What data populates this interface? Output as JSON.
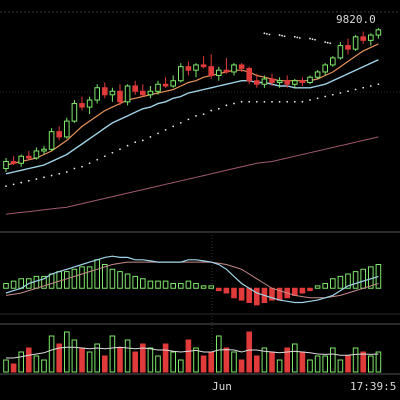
{
  "chart_data": {
    "type": "candlestick",
    "x_axis": {
      "labels": [
        "Jun"
      ],
      "time_readout": "17:39:5"
    },
    "price_panel": {
      "last_price_label": "9820.0",
      "candles": [
        [
          1.0,
          1.6,
          0.8,
          1.4
        ],
        [
          1.4,
          1.7,
          1.2,
          1.3
        ],
        [
          1.3,
          1.8,
          1.1,
          1.7
        ],
        [
          1.7,
          2.0,
          1.5,
          1.6
        ],
        [
          1.6,
          2.2,
          1.5,
          2.0
        ],
        [
          2.0,
          2.3,
          1.8,
          2.1
        ],
        [
          2.1,
          3.3,
          2.0,
          3.1
        ],
        [
          3.1,
          3.4,
          2.6,
          2.8
        ],
        [
          2.8,
          3.9,
          2.7,
          3.7
        ],
        [
          3.7,
          4.9,
          3.6,
          4.7
        ],
        [
          4.7,
          5.1,
          4.3,
          4.5
        ],
        [
          4.5,
          5.1,
          4.1,
          4.9
        ],
        [
          4.9,
          5.8,
          4.7,
          5.6
        ],
        [
          5.6,
          5.9,
          5.0,
          5.2
        ],
        [
          5.2,
          5.6,
          4.8,
          5.4
        ],
        [
          5.4,
          5.8,
          4.6,
          4.8
        ],
        [
          4.8,
          5.8,
          4.6,
          5.7
        ],
        [
          5.7,
          6.0,
          5.2,
          5.4
        ],
        [
          5.4,
          5.8,
          5.1,
          5.2
        ],
        [
          5.2,
          5.7,
          5.0,
          5.4
        ],
        [
          5.4,
          6.0,
          5.2,
          5.8
        ],
        [
          5.8,
          6.2,
          5.6,
          5.7
        ],
        [
          5.7,
          6.3,
          5.6,
          6.0
        ],
        [
          6.0,
          7.0,
          5.9,
          6.8
        ],
        [
          6.8,
          7.1,
          6.3,
          6.6
        ],
        [
          6.6,
          7.0,
          6.2,
          6.9
        ],
        [
          6.9,
          7.4,
          6.7,
          6.8
        ],
        [
          6.8,
          7.5,
          6.1,
          6.3
        ],
        [
          6.3,
          6.8,
          6.0,
          6.6
        ],
        [
          6.6,
          7.3,
          6.4,
          6.5
        ],
        [
          6.5,
          7.0,
          6.3,
          6.9
        ],
        [
          6.9,
          7.0,
          6.5,
          6.7
        ],
        [
          6.7,
          6.8,
          5.8,
          6.0
        ],
        [
          6.0,
          6.4,
          5.6,
          5.8
        ],
        [
          5.8,
          6.3,
          5.6,
          6.1
        ],
        [
          6.1,
          6.4,
          5.7,
          5.9
        ],
        [
          5.9,
          6.2,
          5.6,
          6.0
        ],
        [
          6.0,
          6.3,
          5.6,
          5.8
        ],
        [
          5.8,
          6.1,
          5.6,
          6.0
        ],
        [
          6.0,
          6.2,
          5.7,
          5.9
        ],
        [
          5.9,
          6.3,
          5.8,
          6.2
        ],
        [
          6.2,
          6.6,
          6.1,
          6.5
        ],
        [
          6.5,
          7.0,
          6.3,
          6.9
        ],
        [
          6.9,
          7.4,
          6.8,
          7.3
        ],
        [
          7.3,
          8.2,
          7.2,
          8.0
        ],
        [
          8.0,
          8.4,
          7.5,
          7.8
        ],
        [
          7.8,
          8.6,
          7.7,
          8.5
        ],
        [
          8.5,
          8.8,
          8.1,
          8.3
        ],
        [
          8.3,
          8.7,
          8.0,
          8.6
        ],
        [
          8.6,
          9.0,
          8.4,
          8.9
        ]
      ],
      "ma_short": [
        1.2,
        1.3,
        1.4,
        1.5,
        1.6,
        1.8,
        2.0,
        2.3,
        2.6,
        3.0,
        3.4,
        3.7,
        4.0,
        4.3,
        4.5,
        4.7,
        4.9,
        5.0,
        5.1,
        5.2,
        5.3,
        5.4,
        5.5,
        5.7,
        5.9,
        6.0,
        6.2,
        6.3,
        6.4,
        6.5,
        6.6,
        6.6,
        6.5,
        6.3,
        6.2,
        6.1,
        6.0,
        6.0,
        6.0,
        6.0,
        6.0,
        6.1,
        6.3,
        6.5,
        6.8,
        7.1,
        7.4,
        7.7,
        7.9,
        8.1
      ],
      "ma_mid": [
        0.7,
        0.8,
        0.9,
        1.0,
        1.1,
        1.2,
        1.4,
        1.6,
        1.8,
        2.1,
        2.4,
        2.7,
        3.0,
        3.3,
        3.6,
        3.8,
        4.0,
        4.2,
        4.4,
        4.5,
        4.7,
        4.8,
        5.0,
        5.1,
        5.3,
        5.4,
        5.5,
        5.6,
        5.7,
        5.8,
        5.9,
        6.0,
        6.0,
        5.9,
        5.9,
        5.8,
        5.7,
        5.7,
        5.6,
        5.6,
        5.6,
        5.7,
        5.8,
        6.0,
        6.2,
        6.4,
        6.6,
        6.8,
        7.0,
        7.2
      ],
      "ma_dotted": [
        0.0,
        0.1,
        0.2,
        0.3,
        0.4,
        0.5,
        0.6,
        0.7,
        0.8,
        1.0,
        1.1,
        1.3,
        1.5,
        1.7,
        1.9,
        2.1,
        2.3,
        2.5,
        2.6,
        2.8,
        3.0,
        3.2,
        3.4,
        3.6,
        3.8,
        4.0,
        4.1,
        4.3,
        4.4,
        4.6,
        4.7,
        4.8,
        4.8,
        4.8,
        4.8,
        4.8,
        4.8,
        4.8,
        4.8,
        4.8,
        4.9,
        5.0,
        5.1,
        5.2,
        5.3,
        5.4,
        5.5,
        5.6,
        5.7,
        5.8
      ],
      "ma_long": [
        -1.6,
        -1.55,
        -1.5,
        -1.45,
        -1.4,
        -1.35,
        -1.3,
        -1.25,
        -1.2,
        -1.1,
        -1.0,
        -0.9,
        -0.8,
        -0.7,
        -0.6,
        -0.5,
        -0.4,
        -0.3,
        -0.2,
        -0.1,
        0.0,
        0.1,
        0.2,
        0.3,
        0.4,
        0.5,
        0.6,
        0.7,
        0.8,
        0.9,
        1.0,
        1.1,
        1.2,
        1.3,
        1.35,
        1.4,
        1.5,
        1.6,
        1.7,
        1.8,
        1.9,
        2.0,
        2.1,
        2.2,
        2.3,
        2.4,
        2.5,
        2.6,
        2.7,
        2.8
      ],
      "upper_band_dots": [
        {
          "i": 34,
          "v": 8.7
        },
        {
          "i": 36,
          "v": 8.6
        },
        {
          "i": 38,
          "v": 8.5
        },
        {
          "i": 40,
          "v": 8.4
        },
        {
          "i": 42,
          "v": 8.2
        }
      ],
      "ylim": [
        -2.5,
        9.8
      ]
    },
    "macd_panel": {
      "dif": [
        -0.2,
        -0.1,
        0.0,
        0.2,
        0.3,
        0.4,
        0.6,
        0.7,
        0.8,
        0.9,
        1.0,
        1.1,
        1.2,
        1.3,
        1.35,
        1.3,
        1.3,
        1.2,
        1.2,
        1.15,
        1.1,
        1.1,
        1.1,
        1.1,
        1.2,
        1.2,
        1.15,
        1.1,
        1.0,
        0.8,
        0.5,
        0.2,
        0.0,
        -0.2,
        -0.3,
        -0.4,
        -0.5,
        -0.55,
        -0.6,
        -0.6,
        -0.55,
        -0.5,
        -0.4,
        -0.3,
        -0.1,
        0.1,
        0.2,
        0.3,
        0.4,
        0.5
      ],
      "dea": [
        -0.3,
        -0.25,
        -0.2,
        -0.1,
        0.0,
        0.1,
        0.2,
        0.3,
        0.4,
        0.5,
        0.6,
        0.7,
        0.8,
        0.9,
        1.0,
        1.05,
        1.1,
        1.1,
        1.1,
        1.1,
        1.1,
        1.1,
        1.1,
        1.1,
        1.1,
        1.1,
        1.1,
        1.1,
        1.05,
        1.0,
        0.9,
        0.8,
        0.6,
        0.4,
        0.2,
        0.0,
        -0.1,
        -0.2,
        -0.3,
        -0.35,
        -0.4,
        -0.4,
        -0.4,
        -0.35,
        -0.3,
        -0.2,
        -0.1,
        0.0,
        0.1,
        0.2
      ],
      "hist": [
        0.2,
        0.3,
        0.4,
        0.4,
        0.5,
        0.5,
        0.6,
        0.7,
        0.7,
        0.8,
        0.9,
        0.9,
        1.2,
        1.0,
        0.8,
        0.7,
        0.6,
        0.5,
        0.4,
        0.3,
        0.3,
        0.3,
        0.2,
        0.2,
        0.3,
        0.2,
        0.1,
        0.1,
        -0.1,
        -0.2,
        -0.4,
        -0.5,
        -0.6,
        -0.7,
        -0.6,
        -0.5,
        -0.5,
        -0.4,
        -0.3,
        -0.2,
        -0.1,
        0.1,
        0.2,
        0.4,
        0.5,
        0.6,
        0.7,
        0.8,
        0.9,
        1.0
      ],
      "ylim": [
        -1.0,
        2.2
      ]
    },
    "volume_panel": {
      "values": [
        0.3,
        0.2,
        0.5,
        0.6,
        0.4,
        0.3,
        0.9,
        0.7,
        1.0,
        0.8,
        0.6,
        0.5,
        0.7,
        0.4,
        0.9,
        0.6,
        0.8,
        0.5,
        0.7,
        0.6,
        0.4,
        0.7,
        0.5,
        0.3,
        0.8,
        0.6,
        0.4,
        0.5,
        0.9,
        0.6,
        0.5,
        0.3,
        1.0,
        0.4,
        0.6,
        0.5,
        0.3,
        0.6,
        0.7,
        0.5,
        0.3,
        0.4,
        0.4,
        0.6,
        0.3,
        0.4,
        0.6,
        0.5,
        0.4,
        0.5
      ],
      "ma": [
        0.35,
        0.35,
        0.38,
        0.42,
        0.45,
        0.48,
        0.55,
        0.6,
        0.62,
        0.62,
        0.6,
        0.58,
        0.6,
        0.58,
        0.6,
        0.62,
        0.6,
        0.58,
        0.6,
        0.58,
        0.55,
        0.55,
        0.52,
        0.5,
        0.52,
        0.54,
        0.5,
        0.5,
        0.55,
        0.56,
        0.55,
        0.5,
        0.55,
        0.55,
        0.52,
        0.5,
        0.48,
        0.5,
        0.52,
        0.5,
        0.48,
        0.45,
        0.44,
        0.45,
        0.42,
        0.42,
        0.44,
        0.45,
        0.44,
        0.45
      ],
      "ylim": [
        0,
        1.15
      ]
    }
  }
}
